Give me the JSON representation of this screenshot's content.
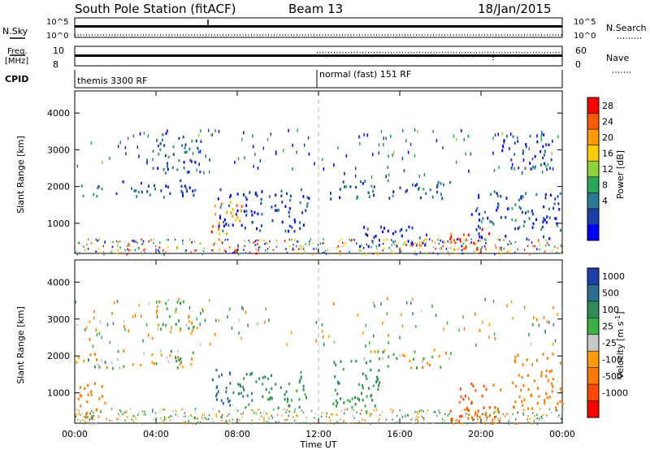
{
  "header": {
    "title": "South Pole Station (fitACF)",
    "beam": "Beam 13",
    "date": "18/Jan/2015"
  },
  "strips": {
    "nsky_label": "N.Sky",
    "nsearch_label": "N.Search",
    "ticks_top": [
      "10^5",
      "10^0"
    ],
    "freq_label_1": "Freq.",
    "freq_label_2": "[MHz]",
    "freq_ticks": [
      "10",
      "8"
    ],
    "nave_label": "Nave",
    "nave_ticks": [
      "60",
      "0"
    ],
    "cpid_label": "CPID",
    "cpid_left": "themis 3300 RF",
    "cpid_right": "normal (fast) 151 RF"
  },
  "axes": {
    "ylabel": "Slant Range [km]",
    "yticks": [
      "4000",
      "3000",
      "2000",
      "1000"
    ],
    "xticks": [
      "00:00",
      "04:00",
      "08:00",
      "12:00",
      "16:00",
      "20:00",
      "00:00"
    ],
    "xlabel": "Time UT"
  },
  "colorbars": {
    "power": {
      "label": "Power [dB]",
      "ticks": [
        "28",
        "24",
        "20",
        "16",
        "12",
        "8",
        "4"
      ],
      "colors": [
        "#ff0000",
        "#ff5a00",
        "#ff9a00",
        "#ffcc00",
        "#8ed43a",
        "#2aa858",
        "#2b7a8f",
        "#1a3da8",
        "#0000ff"
      ]
    },
    "velocity": {
      "label": "Velocity [m s",
      "label_sup": "-1",
      "label_end": "]",
      "ticks": [
        "1000",
        "500",
        "100",
        "25",
        "-25",
        "-100",
        "-500",
        "-1000"
      ],
      "colors": [
        "#1e3faa",
        "#2c6e93",
        "#2e8b57",
        "#3cb043",
        "#c8c8c8",
        "#ff9a00",
        "#ff7800",
        "#ff4a00",
        "#ff0000"
      ]
    }
  },
  "chart_data": {
    "type": "heatmap",
    "title": "South Pole Station (fitACF)",
    "xlabel": "Time UT",
    "ylabel": "Slant Range [km]",
    "xlim": [
      "00:00",
      "24:00"
    ],
    "ylim": [
      180,
      4600
    ],
    "panels": [
      {
        "name": "Power",
        "units": "dB",
        "colorbar_range": [
          0,
          30
        ],
        "regions": [
          {
            "t_start": 0.1,
            "t_end": 1.3,
            "range_start": 1700,
            "range_end": 2100,
            "value": 10
          },
          {
            "t_start": 2.0,
            "t_end": 6.0,
            "range_start": 1700,
            "range_end": 2200,
            "value": 6
          },
          {
            "t_start": 3.5,
            "t_end": 6.2,
            "range_start": 2400,
            "range_end": 3500,
            "value": 6
          },
          {
            "t_start": 6.7,
            "t_end": 8.2,
            "range_start": 700,
            "range_end": 1700,
            "value": 22
          },
          {
            "t_start": 7.0,
            "t_end": 11.5,
            "range_start": 800,
            "range_end": 2000,
            "value": 5
          },
          {
            "t_start": 12.5,
            "t_end": 18.5,
            "range_start": 1700,
            "range_end": 2200,
            "value": 6
          },
          {
            "t_start": 14.0,
            "t_end": 17.5,
            "range_start": 400,
            "range_end": 1000,
            "value": 5
          },
          {
            "t_start": 18.4,
            "t_end": 20.5,
            "range_start": 200,
            "range_end": 900,
            "value": 26
          },
          {
            "t_start": 19.5,
            "t_end": 24.0,
            "range_start": 600,
            "range_end": 1900,
            "value": 6
          },
          {
            "t_start": 21.0,
            "t_end": 23.5,
            "range_start": 2500,
            "range_end": 3500,
            "value": 5
          }
        ]
      },
      {
        "name": "Velocity",
        "units": "m s^-1",
        "colorbar_range": [
          -1000,
          1000
        ],
        "regions": [
          {
            "t_start": 0.0,
            "t_end": 2.5,
            "range_start": 1700,
            "range_end": 2100,
            "value": 0
          },
          {
            "t_start": 0.0,
            "t_end": 1.5,
            "range_start": 300,
            "range_end": 1300,
            "value": -300
          },
          {
            "t_start": 2.0,
            "t_end": 6.0,
            "range_start": 1700,
            "range_end": 2200,
            "value": 0
          },
          {
            "t_start": 4.0,
            "t_end": 6.0,
            "range_start": 2600,
            "range_end": 3600,
            "value": 0
          },
          {
            "t_start": 6.7,
            "t_end": 8.2,
            "range_start": 700,
            "range_end": 1700,
            "value": 600
          },
          {
            "t_start": 8.0,
            "t_end": 11.5,
            "range_start": 600,
            "range_end": 1600,
            "value": 150
          },
          {
            "t_start": 12.5,
            "t_end": 15.0,
            "range_start": 500,
            "range_end": 1900,
            "value": 150
          },
          {
            "t_start": 14.0,
            "t_end": 18.5,
            "range_start": 1700,
            "range_end": 2200,
            "value": 0
          },
          {
            "t_start": 18.4,
            "t_end": 21.0,
            "range_start": 200,
            "range_end": 1300,
            "value": -600
          },
          {
            "t_start": 21.5,
            "t_end": 24.0,
            "range_start": 600,
            "range_end": 2100,
            "value": -300
          }
        ]
      }
    ]
  }
}
